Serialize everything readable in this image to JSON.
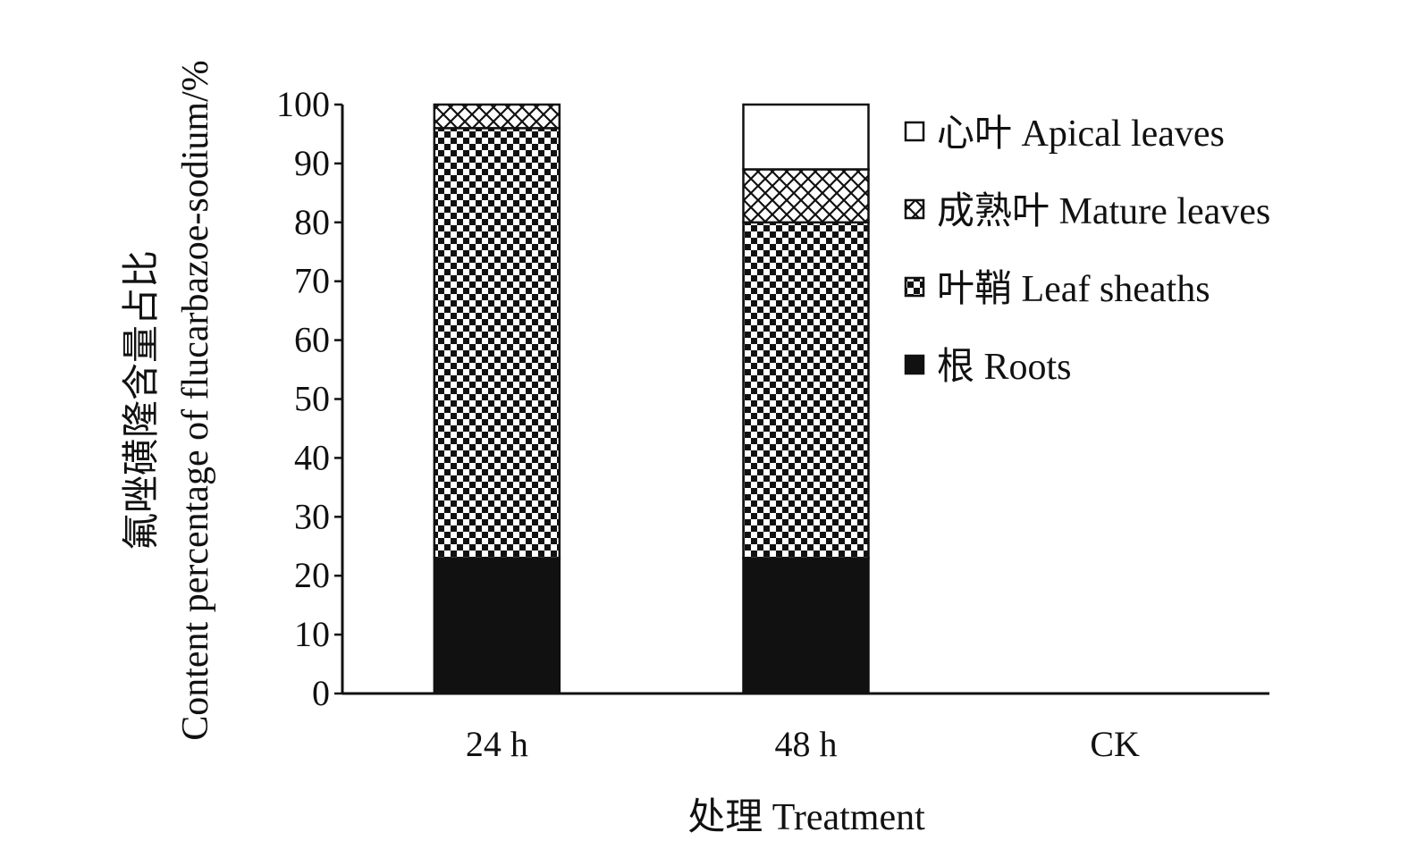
{
  "chart_data": {
    "type": "bar",
    "stacked": true,
    "categories": [
      "24 h",
      "48 h",
      "CK"
    ],
    "series": [
      {
        "name": "根 Roots",
        "values": [
          23,
          23,
          0
        ],
        "pattern": "solid",
        "color": "#111111"
      },
      {
        "name": "叶鞘 Leaf sheaths",
        "values": [
          73,
          57,
          0
        ],
        "pattern": "checker",
        "color": "#111111"
      },
      {
        "name": "成熟叶 Mature leaves",
        "values": [
          4,
          9,
          0
        ],
        "pattern": "crosshatch",
        "color": "#111111"
      },
      {
        "name": "心叶 Apical leaves",
        "values": [
          0,
          11,
          0
        ],
        "pattern": "empty",
        "color": "#ffffff"
      }
    ],
    "legend_order": [
      3,
      2,
      1,
      0
    ],
    "yticks": [
      0,
      10,
      20,
      30,
      40,
      50,
      60,
      70,
      80,
      90,
      100
    ],
    "ylim": [
      0,
      100
    ],
    "ylabel_line1": "氟唑磺隆含量占比",
    "ylabel_line2": "Content percentage of flucarbazoe-sodium/%",
    "xlabel": "处理 Treatment",
    "legend_position": "top-right",
    "grid": false
  }
}
